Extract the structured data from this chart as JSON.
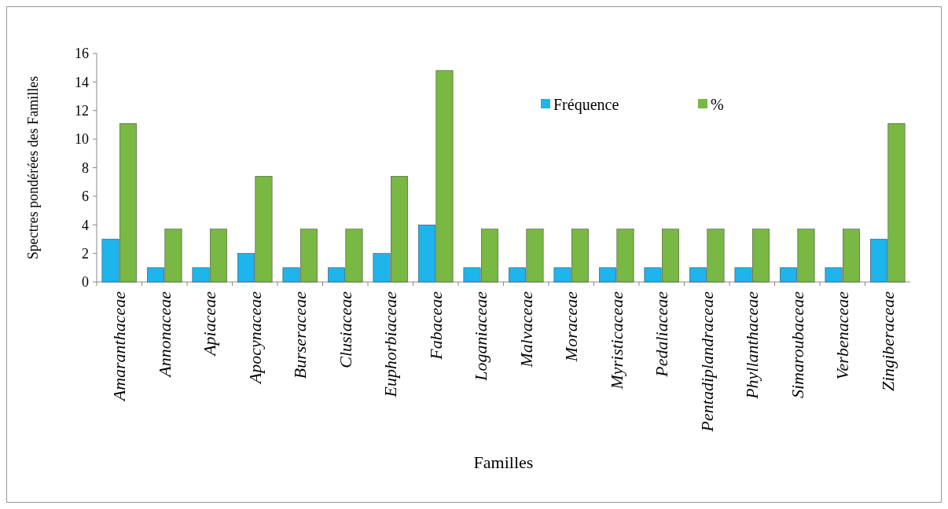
{
  "chart_data": {
    "type": "bar",
    "xlabel": "Familles",
    "ylabel": "Spectres pondérées des Familles",
    "categories": [
      "Amaranthaceae",
      "Annonaceae",
      "Apiaceae",
      "Apocynaceae",
      "Burseraceae",
      "Clusiaceae",
      "Euphorbiaceae",
      "Fabaceae",
      "Loganiaceae",
      "Malvaceae",
      "Moraceae",
      "Myristicaceae",
      "Pedaliaceae",
      "Pentadiplandraceae",
      "Phyllanthaceae",
      "Simaroubaceae",
      "Verbenaceae",
      "Zingiberaceae"
    ],
    "series": [
      {
        "name": "Fréquence",
        "color": "#1eb4ec",
        "values": [
          3,
          1,
          1,
          2,
          1,
          1,
          2,
          4,
          1,
          1,
          1,
          1,
          1,
          1,
          1,
          1,
          1,
          3
        ]
      },
      {
        "name": "%",
        "color": "#78b843",
        "values": [
          11.1,
          3.7,
          3.7,
          7.4,
          3.7,
          3.7,
          7.4,
          14.8,
          3.7,
          3.7,
          3.7,
          3.7,
          3.7,
          3.7,
          3.7,
          3.7,
          3.7,
          11.1
        ]
      }
    ],
    "ylim": [
      0,
      16
    ],
    "yticks": [
      0,
      2,
      4,
      6,
      8,
      10,
      12,
      14,
      16
    ],
    "grid": false,
    "legend": "top right"
  }
}
